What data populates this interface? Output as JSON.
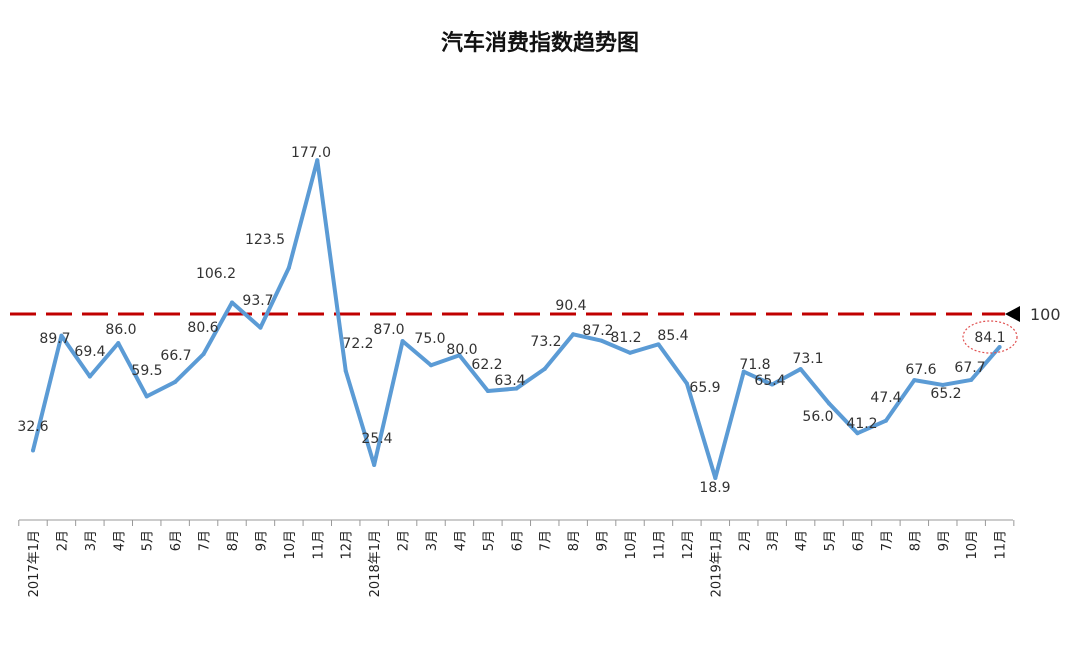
{
  "chart_data": {
    "type": "line",
    "title": "汽车消费指数趋势图",
    "xlabel": "",
    "ylabel": "",
    "grid": false,
    "x": [
      "2017年1月",
      "2月",
      "3月",
      "4月",
      "5月",
      "6月",
      "7月",
      "8月",
      "9月",
      "10月",
      "11月",
      "12月",
      "2018年1月",
      "2月",
      "3月",
      "4月",
      "5月",
      "6月",
      "7月",
      "8月",
      "9月",
      "10月",
      "11月",
      "12月",
      "2019年1月",
      "2月",
      "3月",
      "4月",
      "5月",
      "6月",
      "7月",
      "8月",
      "9月",
      "10月",
      "11月"
    ],
    "series": [
      {
        "values": [
          32.6,
          89.7,
          69.4,
          86.0,
          59.5,
          66.7,
          80.6,
          106.2,
          93.7,
          123.5,
          177.0,
          72.2,
          25.4,
          87.0,
          75.0,
          80.0,
          62.2,
          63.4,
          73.2,
          90.4,
          87.2,
          81.2,
          85.4,
          65.9,
          18.9,
          71.8,
          65.4,
          73.1,
          56.0,
          41.2,
          47.4,
          67.6,
          65.2,
          67.7,
          84.1
        ],
        "color": "#5b9bd5"
      }
    ],
    "reference_line": {
      "value": 100,
      "label": "100",
      "color": "#c00000",
      "style": "dashed"
    },
    "highlight": {
      "index": 34,
      "color": "#e05050"
    },
    "ylim": [
      0,
      180
    ]
  }
}
